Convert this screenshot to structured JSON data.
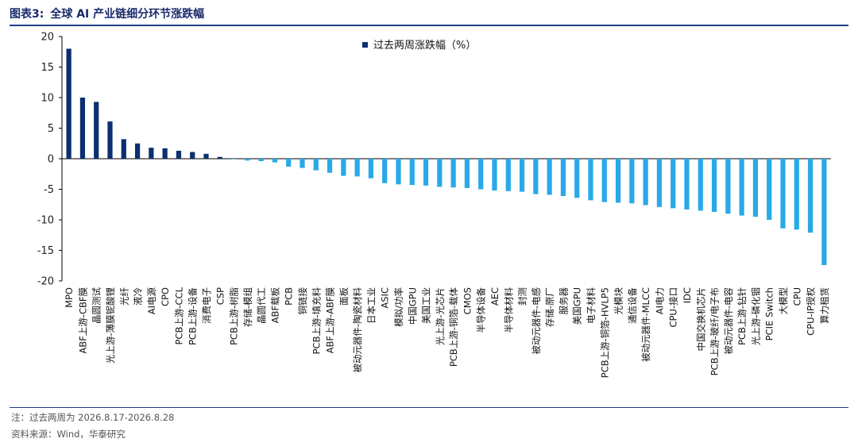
{
  "header": {
    "figure_no": "图表3:",
    "title": "全球 AI 产业链细分环节涨跌幅"
  },
  "footer": {
    "note": "注：过去两周为 2026.8.17-2026.8.28",
    "source": "资料来源：Wind，华泰研究"
  },
  "colors": {
    "positive": "#0b2f70",
    "negative": "#29a9e8",
    "rule": "#1f3f86"
  },
  "chart_data": {
    "type": "bar",
    "title": "",
    "xlabel": "",
    "ylabel": "",
    "ylim": [
      -20,
      20
    ],
    "yticks": [
      20,
      15,
      10,
      5,
      0,
      -5,
      -10,
      -15,
      -20
    ],
    "grid": false,
    "legend_position": "top-center",
    "series": [
      {
        "name": "过去两周涨跌幅（%）",
        "categories": [
          "MPO",
          "ABF上游-CBF膜",
          "晶圆测试",
          "光上游-薄膜铌酸锂",
          "光纤",
          "液冷",
          "AI电源",
          "CPO",
          "PCB上游-CCL",
          "PCB上游-设备",
          "消费电子",
          "CSP",
          "PCB上游-树脂",
          "存储-模组",
          "晶圆代工",
          "ABF载板",
          "PCB",
          "铜链接",
          "PCB上游-填充料",
          "ABF上游-ABF膜",
          "面板",
          "被动元器件-陶瓷材料",
          "日本工业",
          "ASIC",
          "模拟/功率",
          "中国GPU",
          "美国工业",
          "光上游-光芯片",
          "PCB上游-铜箔-载体",
          "CMOS",
          "半导体设备",
          "AEC",
          "半导体材料",
          "封测",
          "被动元器件-电感",
          "存储-原厂",
          "服务器",
          "美国GPU",
          "电子材料",
          "PCB上游-铜箔-HVLP5",
          "光模块",
          "通信设备",
          "被动元器件-MLCC",
          "AI电力",
          "CPU-接口",
          "IDC",
          "中国交换机芯片",
          "PCB上游-玻纤/电子布",
          "被动元器件-电容",
          "PCB上游-钻针",
          "光上游-磷化铟",
          "PCIE Switch",
          "大模型",
          "CPU",
          "CPU-IP授权",
          "算力租赁"
        ],
        "values": [
          18.0,
          10.0,
          9.3,
          6.1,
          3.2,
          2.5,
          1.8,
          1.7,
          1.3,
          1.1,
          0.8,
          0.3,
          -0.1,
          -0.3,
          -0.4,
          -0.6,
          -1.3,
          -1.5,
          -1.9,
          -2.3,
          -2.8,
          -2.9,
          -3.2,
          -4.0,
          -4.2,
          -4.3,
          -4.4,
          -4.6,
          -4.7,
          -4.8,
          -5.0,
          -5.2,
          -5.3,
          -5.4,
          -5.8,
          -5.9,
          -6.1,
          -6.4,
          -6.8,
          -7.1,
          -7.2,
          -7.3,
          -7.6,
          -7.9,
          -8.1,
          -8.3,
          -8.5,
          -8.7,
          -9.0,
          -9.3,
          -9.5,
          -10.0,
          -11.4,
          -11.6,
          -12.1,
          -17.4
        ]
      }
    ]
  }
}
